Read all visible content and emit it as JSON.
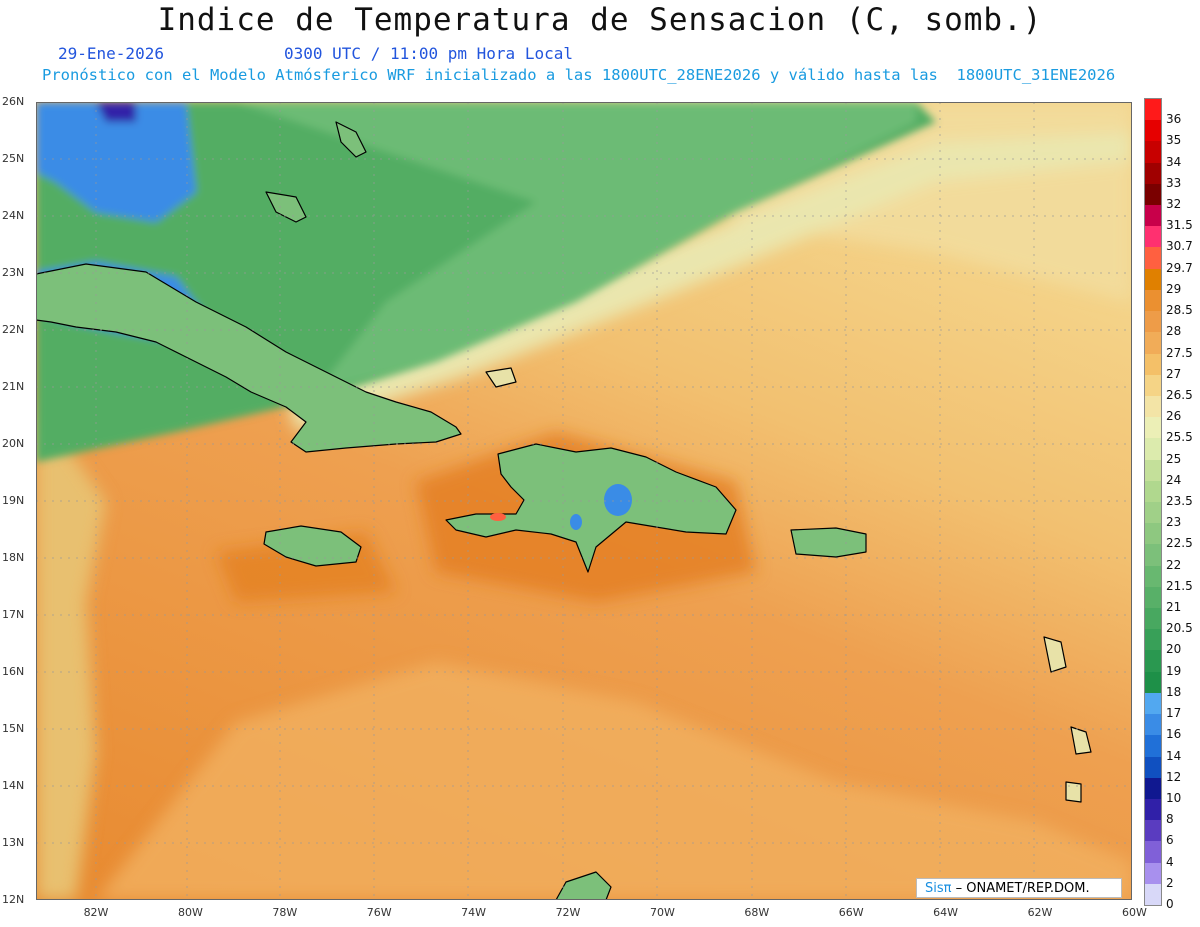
{
  "title": "Indice de Temperatura de Sensacion (C, somb.)",
  "date": "29-Ene-2026",
  "time_label": "0300 UTC / 11:00 pm Hora Local",
  "model_info": "Pronóstico con el Modelo Atmósferico WRF inicializado a las 1800UTC_28ENE2026 y válido hasta las  1800UTC_31ENE2026",
  "lat_labels": [
    "26N",
    "25N",
    "24N",
    "23N",
    "22N",
    "21N",
    "20N",
    "19N",
    "18N",
    "17N",
    "16N",
    "15N",
    "14N",
    "13N",
    "12N"
  ],
  "lon_labels": [
    "82W",
    "80W",
    "78W",
    "76W",
    "74W",
    "72W",
    "70W",
    "68W",
    "66W",
    "64W",
    "62W",
    "60W"
  ],
  "colorbar": {
    "labels": [
      "36",
      "35",
      "34",
      "33",
      "32",
      "31.5",
      "30.7",
      "29.7",
      "29",
      "28.5",
      "28",
      "27.5",
      "27",
      "26.5",
      "26",
      "25.5",
      "25",
      "24",
      "23.5",
      "23",
      "22.5",
      "22",
      "21.5",
      "21",
      "20.5",
      "20",
      "19",
      "18",
      "17",
      "16",
      "14",
      "12",
      "10",
      "8",
      "6",
      "4",
      "2",
      "0"
    ],
    "colors": [
      "#ff1a1a",
      "#e60000",
      "#c80000",
      "#a00000",
      "#7a0000",
      "#c8004a",
      "#ff3070",
      "#ff6040",
      "#e08000",
      "#eb9030",
      "#ee9c48",
      "#f1ac58",
      "#f4c068",
      "#f5d486",
      "#f3e4a6",
      "#ecefb6",
      "#dcebad",
      "#c4e09a",
      "#b0d88e",
      "#a0d088",
      "#8ec880",
      "#7cc07a",
      "#68b870",
      "#58b068",
      "#48a860",
      "#38a058",
      "#2a9850",
      "#1e9048",
      "#52a8f0",
      "#3a8ce6",
      "#2070d8",
      "#1050c0",
      "#101890",
      "#3020a8",
      "#5a3cc0",
      "#8060d8",
      "#a890ee",
      "#d8d8f8"
    ]
  },
  "credit": {
    "brand": "Sisπ",
    "text": "– ONAMET/REP.DOM."
  }
}
